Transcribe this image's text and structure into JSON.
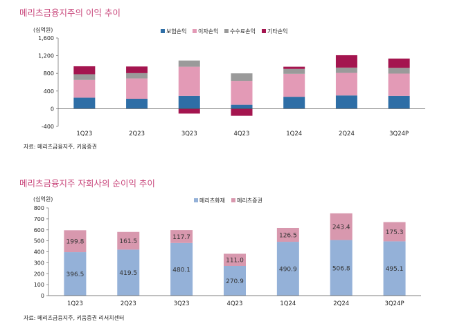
{
  "chart1": {
    "title": "메리츠금융지주의 이익 추이",
    "unit": "(십억원)",
    "source": "자료: 메리츠금융지주, 키움증권",
    "chart_data": {
      "type": "bar",
      "stacked": true,
      "categories": [
        "1Q23",
        "2Q23",
        "3Q23",
        "4Q23",
        "1Q24",
        "2Q24",
        "3Q24P"
      ],
      "ylim": [
        -400,
        1600
      ],
      "yticks": [
        -400,
        0,
        400,
        800,
        1200,
        1600
      ],
      "legend_position": "top-center",
      "grid": false,
      "series": [
        {
          "name": "보험손익",
          "color": "#2e6ea6",
          "values": [
            250,
            225,
            290,
            90,
            270,
            300,
            290
          ]
        },
        {
          "name": "이자손익",
          "color": "#e39ab6",
          "values": [
            400,
            460,
            660,
            540,
            520,
            510,
            505
          ]
        },
        {
          "name": "수수료손익",
          "color": "#9a9a9a",
          "values": [
            130,
            120,
            140,
            170,
            110,
            120,
            130
          ]
        },
        {
          "name": "기타손익",
          "color": "#a4154f",
          "values": [
            180,
            150,
            -110,
            -160,
            50,
            280,
            210
          ]
        }
      ]
    }
  },
  "chart2": {
    "title": "메리츠금융지주 자회사의 순이익 추이",
    "unit": "(십억원)",
    "source": "자료: 메리츠금융지주, 키움증권 리서치센터",
    "chart_data": {
      "type": "bar",
      "stacked": true,
      "categories": [
        "1Q23",
        "2Q23",
        "3Q23",
        "4Q23",
        "1Q24",
        "2Q24",
        "3Q24P"
      ],
      "ylim": [
        0,
        800
      ],
      "yticks": [
        0,
        100,
        200,
        300,
        400,
        500,
        600,
        700,
        800
      ],
      "legend_position": "top-center",
      "grid": false,
      "series": [
        {
          "name": "메리츠화재",
          "color": "#94b1d8",
          "values": [
            396.5,
            419.5,
            480.1,
            270.9,
            490.9,
            506.8,
            495.1
          ],
          "labels": [
            "396.5",
            "419.5",
            "480.1",
            "270.9",
            "490.9",
            "506.8",
            "495.1"
          ]
        },
        {
          "name": "메리츠증권",
          "color": "#d898ae",
          "values": [
            199.8,
            161.5,
            117.7,
            111.0,
            126.5,
            243.4,
            175.3
          ],
          "labels": [
            "199.8",
            "161.5",
            "117.7",
            "111.0",
            "126.5",
            "243.4",
            "175.3"
          ]
        }
      ]
    }
  }
}
